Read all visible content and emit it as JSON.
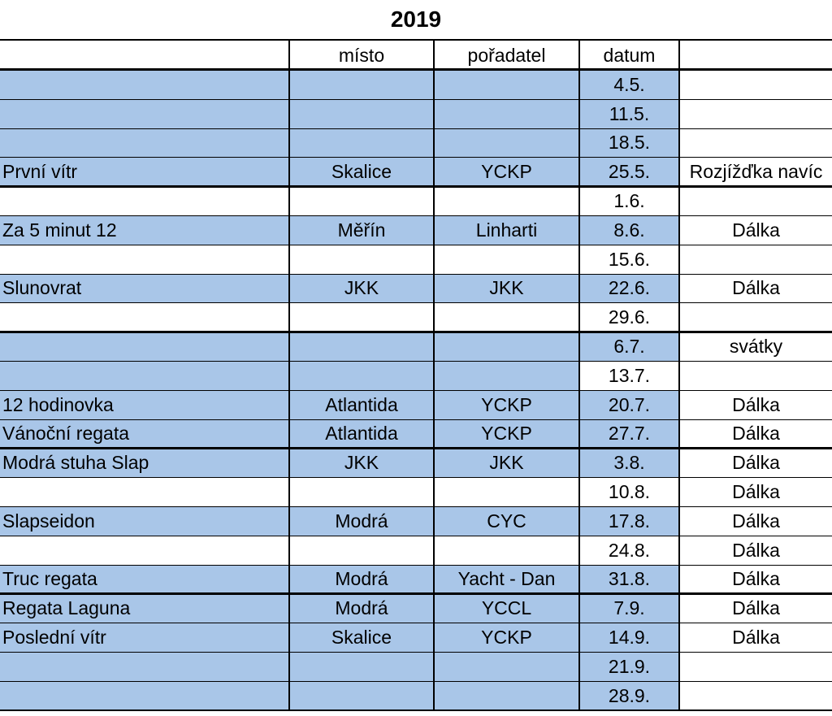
{
  "title": "2019",
  "colors": {
    "highlight": "#a9c6e8",
    "plain": "#ffffff",
    "border": "#000000"
  },
  "header": [
    "",
    "místo",
    "pořadatel",
    "datum",
    ""
  ],
  "rows": [
    {
      "name": "",
      "misto": "",
      "poradatel": "",
      "datum": "4.5.",
      "note": "",
      "fill": [
        true,
        true,
        true,
        true,
        false
      ]
    },
    {
      "name": "",
      "misto": "",
      "poradatel": "",
      "datum": "11.5.",
      "note": "",
      "fill": [
        true,
        true,
        true,
        true,
        false
      ]
    },
    {
      "name": "",
      "misto": "",
      "poradatel": "",
      "datum": "18.5.",
      "note": "",
      "fill": [
        true,
        true,
        true,
        true,
        false
      ]
    },
    {
      "name": "První vítr",
      "misto": "Skalice",
      "poradatel": "YCKP",
      "datum": "25.5.",
      "note": "Rozjížďka navíc",
      "fill": [
        true,
        true,
        true,
        true,
        false
      ]
    },
    {
      "name": "",
      "misto": "",
      "poradatel": "",
      "datum": "1.6.",
      "note": "",
      "fill": [
        false,
        false,
        false,
        false,
        false
      ]
    },
    {
      "name": "Za 5 minut 12",
      "misto": "Měřín",
      "poradatel": "Linharti",
      "datum": "8.6.",
      "note": "Dálka",
      "fill": [
        true,
        true,
        true,
        true,
        false
      ]
    },
    {
      "name": "",
      "misto": "",
      "poradatel": "",
      "datum": "15.6.",
      "note": "",
      "fill": [
        false,
        false,
        false,
        false,
        false
      ]
    },
    {
      "name": " Slunovrat",
      "misto": "JKK",
      "poradatel": "JKK",
      "datum": "22.6.",
      "note": "Dálka",
      "fill": [
        true,
        true,
        true,
        true,
        false
      ]
    },
    {
      "name": "",
      "misto": "",
      "poradatel": "",
      "datum": "29.6.",
      "note": "",
      "fill": [
        false,
        false,
        false,
        false,
        false
      ]
    },
    {
      "name": "",
      "misto": "",
      "poradatel": "",
      "datum": "6.7.",
      "note": "svátky",
      "fill": [
        true,
        true,
        true,
        true,
        false
      ]
    },
    {
      "name": "",
      "misto": "",
      "poradatel": "",
      "datum": "13.7.",
      "note": "",
      "fill": [
        true,
        true,
        true,
        false,
        false
      ]
    },
    {
      "name": "12 hodinovka",
      "misto": "Atlantida",
      "poradatel": "YCKP",
      "datum": "20.7.",
      "note": "Dálka",
      "fill": [
        true,
        true,
        true,
        true,
        false
      ]
    },
    {
      "name": "Vánoční regata",
      "misto": "Atlantida",
      "poradatel": "YCKP",
      "datum": "27.7.",
      "note": "Dálka",
      "fill": [
        true,
        true,
        true,
        true,
        false
      ]
    },
    {
      "name": "Modrá stuha Slap",
      "misto": "JKK",
      "poradatel": "JKK",
      "datum": "3.8.",
      "note": "Dálka",
      "fill": [
        true,
        true,
        true,
        true,
        false
      ]
    },
    {
      "name": "",
      "misto": "",
      "poradatel": "",
      "datum": "10.8.",
      "note": "Dálka",
      "fill": [
        false,
        false,
        false,
        false,
        false
      ]
    },
    {
      "name": "Slapseidon",
      "misto": "Modrá",
      "poradatel": "CYC",
      "datum": "17.8.",
      "note": "Dálka",
      "fill": [
        true,
        true,
        true,
        true,
        false
      ]
    },
    {
      "name": "",
      "misto": "",
      "poradatel": "",
      "datum": "24.8.",
      "note": "Dálka",
      "fill": [
        false,
        false,
        false,
        false,
        false
      ]
    },
    {
      "name": "Truc regata",
      "misto": "Modrá",
      "poradatel": "Yacht - Dan",
      "datum": "31.8.",
      "note": "Dálka",
      "fill": [
        true,
        true,
        true,
        true,
        false
      ]
    },
    {
      "name": "Regata Laguna",
      "misto": "Modrá",
      "poradatel": "YCCL",
      "datum": "7.9.",
      "note": "Dálka",
      "fill": [
        true,
        true,
        true,
        true,
        false
      ]
    },
    {
      "name": "Poslední vítr",
      "misto": "Skalice",
      "poradatel": "YCKP",
      "datum": "14.9.",
      "note": "Dálka",
      "fill": [
        true,
        true,
        true,
        true,
        false
      ]
    },
    {
      "name": "",
      "misto": "",
      "poradatel": "",
      "datum": "21.9.",
      "note": "",
      "fill": [
        true,
        true,
        true,
        true,
        false
      ]
    },
    {
      "name": "",
      "misto": "",
      "poradatel": "",
      "datum": "28.9.",
      "note": "",
      "fill": [
        true,
        true,
        true,
        true,
        false
      ]
    }
  ]
}
